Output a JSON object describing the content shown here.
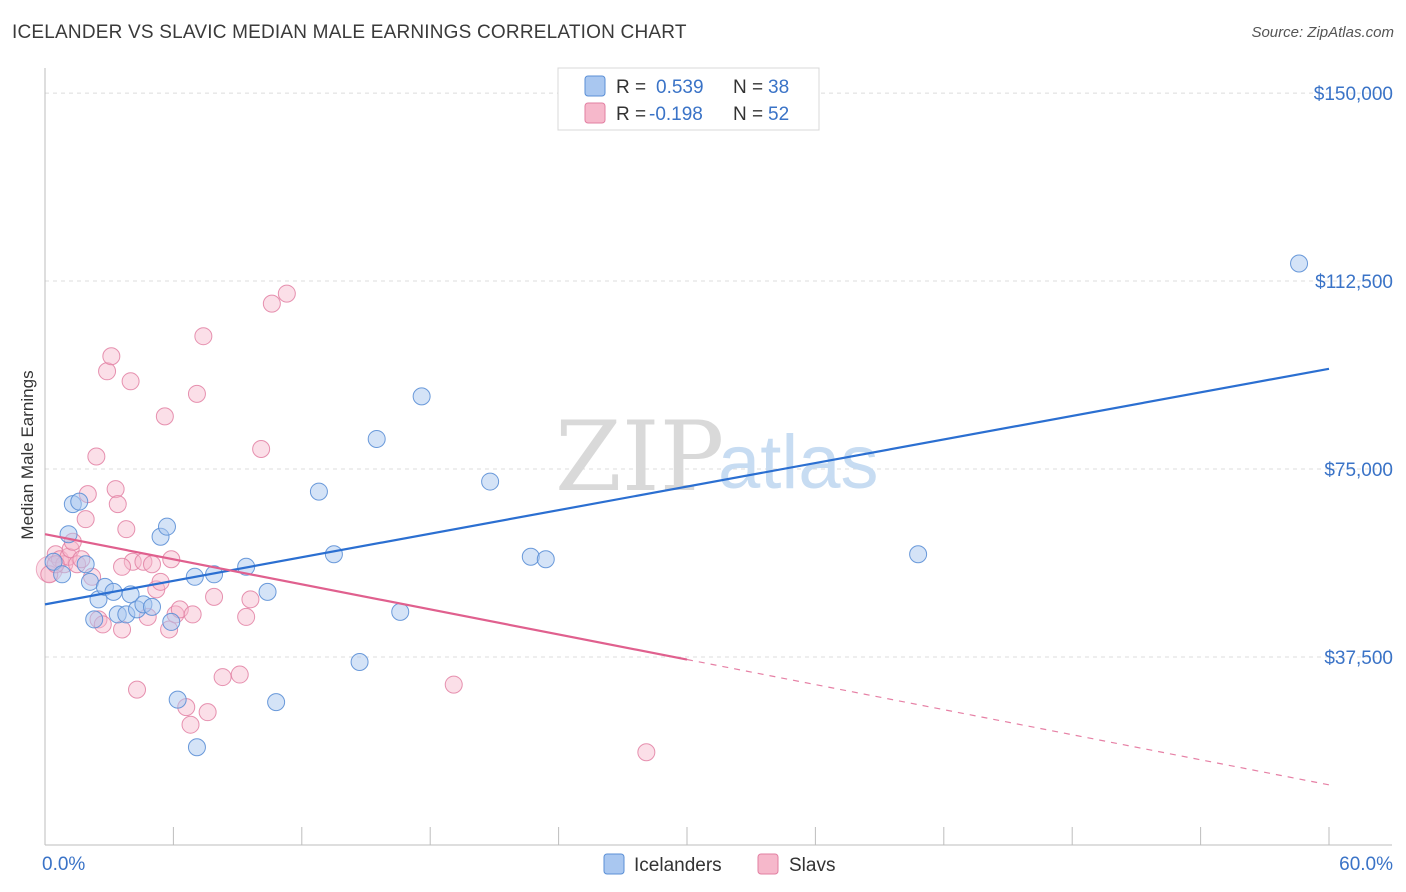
{
  "title": "ICELANDER VS SLAVIC MEDIAN MALE EARNINGS CORRELATION CHART",
  "source": "Source: ZipAtlas.com",
  "watermark": {
    "zip": "ZIP",
    "atlas": "atlas"
  },
  "colors": {
    "icelanders_fill": "#a9c7f0",
    "icelanders_stroke": "#5b8fd6",
    "icelanders_line": "#2b6fd1",
    "slavs_fill": "#f6b8cb",
    "slavs_stroke": "#e27fa2",
    "slavs_line": "#e0608e",
    "tick_label": "#3a73c7",
    "grid": "#dcdcdc"
  },
  "legend": {
    "rows": [
      {
        "r_label": "R =",
        "r_value": "0.539",
        "n_label": "N =",
        "n_value": "38"
      },
      {
        "r_label": "R =",
        "r_value": "-0.198",
        "n_label": "N =",
        "n_value": "52"
      }
    ]
  },
  "chart_data": {
    "type": "scatter",
    "xlabel": "",
    "ylabel": "Median Male Earnings",
    "xlim": [
      0,
      60
    ],
    "ylim": [
      0,
      155000
    ],
    "x_tick_labels": [
      "0.0%",
      "60.0%"
    ],
    "y_ticks": [
      37500,
      75000,
      112500,
      150000
    ],
    "y_tick_labels": [
      "$37,500",
      "$75,000",
      "$112,500",
      "$150,000"
    ],
    "grid": true,
    "series": [
      {
        "name": "Icelanders",
        "r": 0.539,
        "n": 38,
        "trend": {
          "x0": 0,
          "y0": 48000,
          "x1": 60,
          "y1": 95000
        },
        "points": [
          [
            0.4,
            56500
          ],
          [
            0.8,
            54000
          ],
          [
            1.1,
            62000
          ],
          [
            1.3,
            68000
          ],
          [
            1.6,
            68500
          ],
          [
            1.9,
            56000
          ],
          [
            2.1,
            52500
          ],
          [
            2.5,
            49000
          ],
          [
            2.8,
            51500
          ],
          [
            3.2,
            50500
          ],
          [
            3.4,
            46000
          ],
          [
            3.8,
            46000
          ],
          [
            4.0,
            50000
          ],
          [
            4.3,
            47000
          ],
          [
            4.6,
            48000
          ],
          [
            5.0,
            47500
          ],
          [
            5.4,
            61500
          ],
          [
            5.7,
            63500
          ],
          [
            5.9,
            44500
          ],
          [
            6.2,
            29000
          ],
          [
            7.1,
            19500
          ],
          [
            7.9,
            54000
          ],
          [
            9.4,
            55500
          ],
          [
            10.4,
            50500
          ],
          [
            10.8,
            28500
          ],
          [
            12.8,
            70500
          ],
          [
            13.5,
            58000
          ],
          [
            14.7,
            36500
          ],
          [
            15.5,
            81000
          ],
          [
            16.6,
            46500
          ],
          [
            17.6,
            89500
          ],
          [
            20.8,
            72500
          ],
          [
            22.7,
            57500
          ],
          [
            23.4,
            57000
          ],
          [
            40.8,
            58000
          ],
          [
            58.6,
            116000
          ],
          [
            7.0,
            53500
          ],
          [
            2.3,
            45000
          ]
        ]
      },
      {
        "name": "Slavs",
        "r": -0.198,
        "n": 52,
        "trend": {
          "x0": 0,
          "y0": 62000,
          "x1": 30,
          "y1": 37000
        },
        "trend_dashed": {
          "x0": 30,
          "y0": 37000,
          "x1": 60,
          "y1": 12000
        },
        "points": [
          [
            0.2,
            54000
          ],
          [
            0.5,
            58000
          ],
          [
            0.7,
            57000
          ],
          [
            0.9,
            56000
          ],
          [
            1.1,
            57500
          ],
          [
            1.2,
            59000
          ],
          [
            1.3,
            60500
          ],
          [
            1.5,
            56000
          ],
          [
            1.7,
            57000
          ],
          [
            1.9,
            65000
          ],
          [
            2.0,
            70000
          ],
          [
            2.2,
            53500
          ],
          [
            2.4,
            77500
          ],
          [
            2.5,
            45000
          ],
          [
            2.7,
            44000
          ],
          [
            2.9,
            94500
          ],
          [
            3.1,
            97500
          ],
          [
            3.3,
            71000
          ],
          [
            3.4,
            68000
          ],
          [
            3.6,
            43000
          ],
          [
            3.8,
            63000
          ],
          [
            4.0,
            92500
          ],
          [
            4.1,
            56500
          ],
          [
            4.3,
            31000
          ],
          [
            4.6,
            56500
          ],
          [
            4.8,
            45500
          ],
          [
            5.0,
            56000
          ],
          [
            5.2,
            51000
          ],
          [
            5.4,
            52500
          ],
          [
            5.6,
            85500
          ],
          [
            5.8,
            43000
          ],
          [
            5.9,
            57000
          ],
          [
            6.1,
            46000
          ],
          [
            6.3,
            47000
          ],
          [
            6.6,
            27500
          ],
          [
            6.8,
            24000
          ],
          [
            6.9,
            46000
          ],
          [
            7.1,
            90000
          ],
          [
            7.4,
            101500
          ],
          [
            7.6,
            26500
          ],
          [
            7.9,
            49500
          ],
          [
            8.3,
            33500
          ],
          [
            9.1,
            34000
          ],
          [
            9.4,
            45500
          ],
          [
            9.6,
            49000
          ],
          [
            10.1,
            79000
          ],
          [
            10.6,
            108000
          ],
          [
            11.3,
            110000
          ],
          [
            19.1,
            32000
          ],
          [
            28.1,
            18500
          ],
          [
            3.6,
            55500
          ],
          [
            0.5,
            56000
          ]
        ]
      }
    ]
  },
  "bottom_legend": [
    "Icelanders",
    "Slavs"
  ]
}
